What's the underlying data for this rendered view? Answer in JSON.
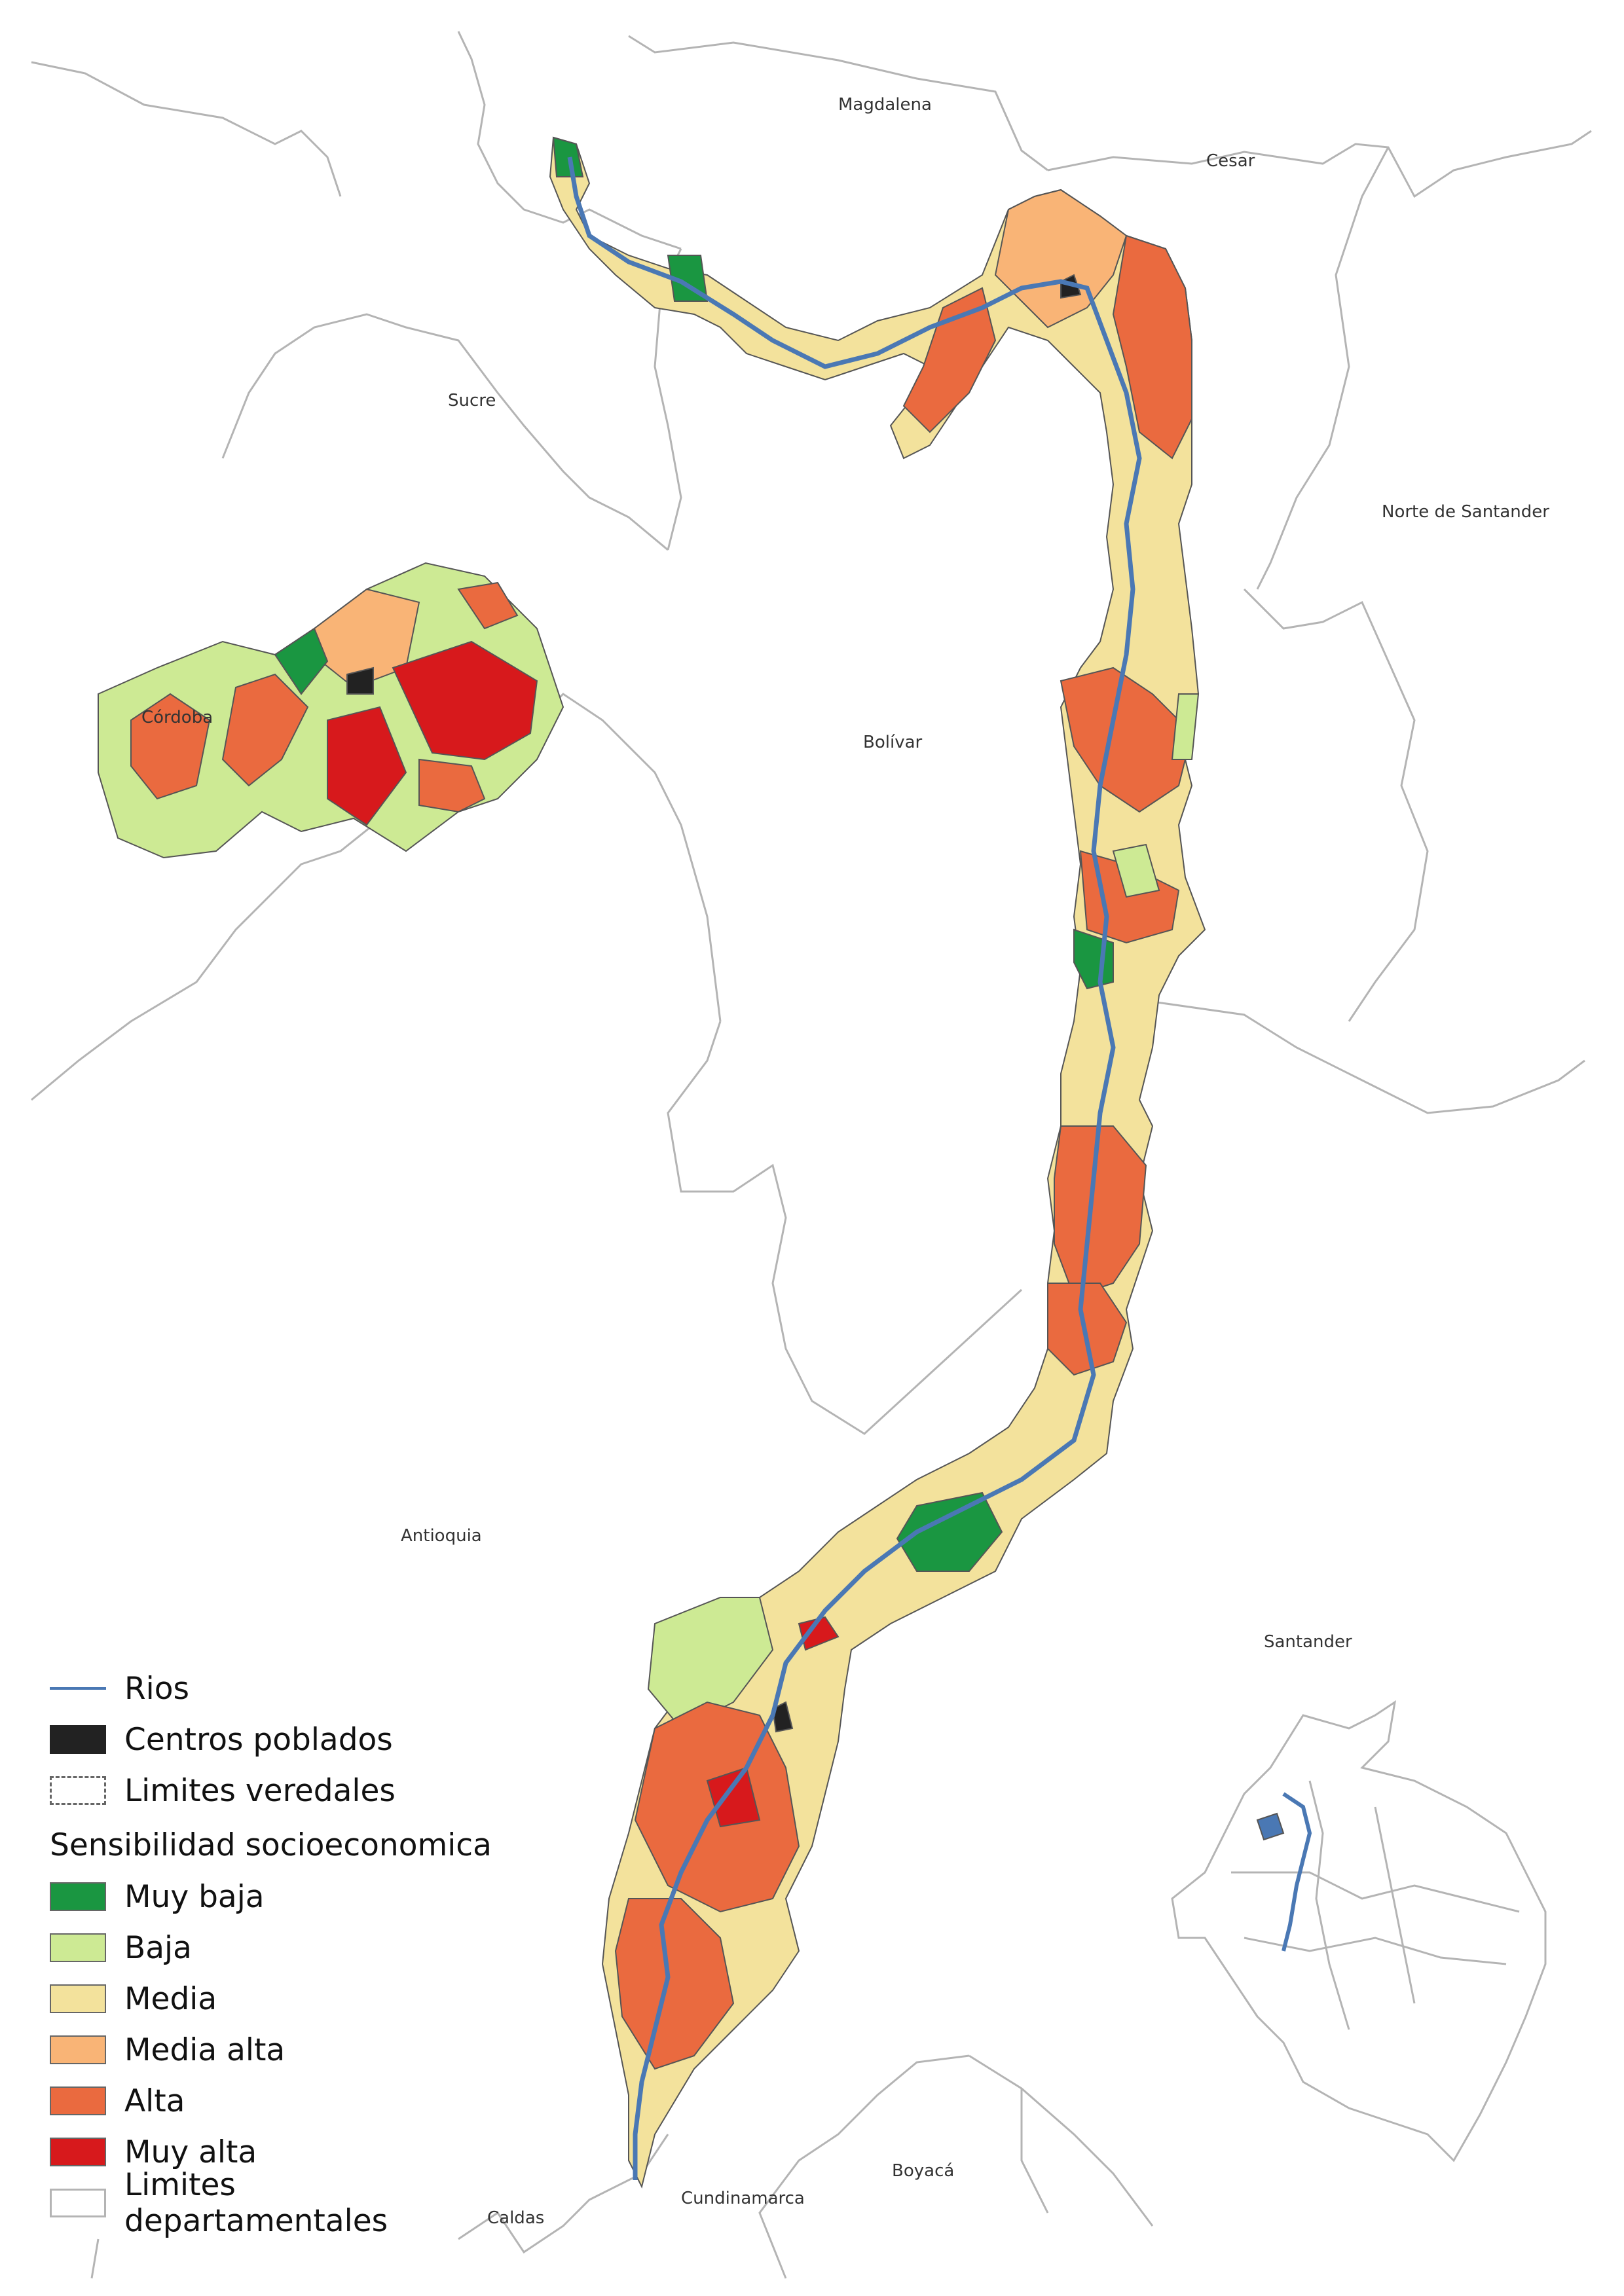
{
  "departments": [
    {
      "id": "magdalena",
      "name": "Magdalena"
    },
    {
      "id": "cesar",
      "name": "Cesar"
    },
    {
      "id": "sucre",
      "name": "Sucre"
    },
    {
      "id": "norte-de-santander",
      "name": "Norte de Santander"
    },
    {
      "id": "cordoba",
      "name": "Córdoba"
    },
    {
      "id": "bolivar",
      "name": "Bolívar"
    },
    {
      "id": "antioquia",
      "name": "Antioquia"
    },
    {
      "id": "santander",
      "name": "Santander"
    },
    {
      "id": "cundinamarca",
      "name": "Cundinamarca"
    },
    {
      "id": "boyaca",
      "name": "Boyacá"
    },
    {
      "id": "caldas",
      "name": "Caldas"
    }
  ],
  "colors": {
    "river": "#4a78b4",
    "muy_baja": "#1a9641",
    "baja": "#cdea94",
    "media": "#f3e29c",
    "media_alta": "#f9b476",
    "alta": "#ea6a3f",
    "muy_alta": "#d7191c",
    "centros": "#222222",
    "dept_border": "#b4b4b4"
  },
  "legend": {
    "rios": "Rios",
    "centros": "Centros poblados",
    "limites_veredales": "Limites veredales",
    "heading": "Sensibilidad socioeconomica",
    "classes": [
      {
        "key": "muy_baja",
        "label": "Muy baja",
        "color": "#1a9641"
      },
      {
        "key": "baja",
        "label": "Baja",
        "color": "#cdea94"
      },
      {
        "key": "media",
        "label": "Media",
        "color": "#f3e29c"
      },
      {
        "key": "media_alta",
        "label": "Media alta",
        "color": "#f9b476"
      },
      {
        "key": "alta",
        "label": "Alta",
        "color": "#ea6a3f"
      },
      {
        "key": "muy_alta",
        "label": "Muy alta",
        "color": "#d7191c"
      }
    ],
    "limites_departamentales": "Limites departamentales"
  }
}
